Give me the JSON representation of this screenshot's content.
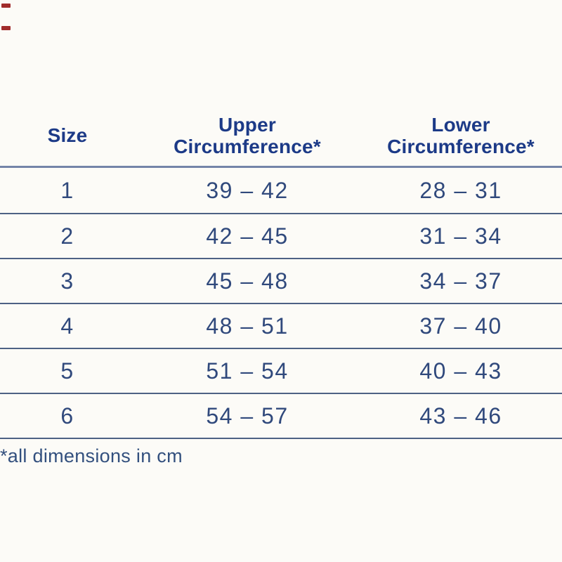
{
  "page": {
    "background_color": "#fcfbf7",
    "crop_mark_color": "#a12c2c"
  },
  "table": {
    "columns": [
      {
        "key": "size",
        "label": "Size"
      },
      {
        "key": "upper",
        "label": "Upper\nCircumference*"
      },
      {
        "key": "lower",
        "label": "Lower\nCircumference*"
      }
    ],
    "rows": [
      {
        "size": "1",
        "upper": "39 – 42",
        "lower": "28 – 31"
      },
      {
        "size": "2",
        "upper": "42 – 45",
        "lower": "31 – 34"
      },
      {
        "size": "3",
        "upper": "45 – 48",
        "lower": "34 – 37"
      },
      {
        "size": "4",
        "upper": "48 – 51",
        "lower": "37 – 40"
      },
      {
        "size": "5",
        "upper": "51 – 54",
        "lower": "40 – 43"
      },
      {
        "size": "6",
        "upper": "54 – 57",
        "lower": "43 – 46"
      }
    ],
    "header_text_color": "#1c3a87",
    "value_text_color": "#30497c",
    "header_rule_color": "#7484a8",
    "row_rule_color": "#4d6184"
  },
  "footnote": {
    "text": "*all dimensions in cm"
  }
}
